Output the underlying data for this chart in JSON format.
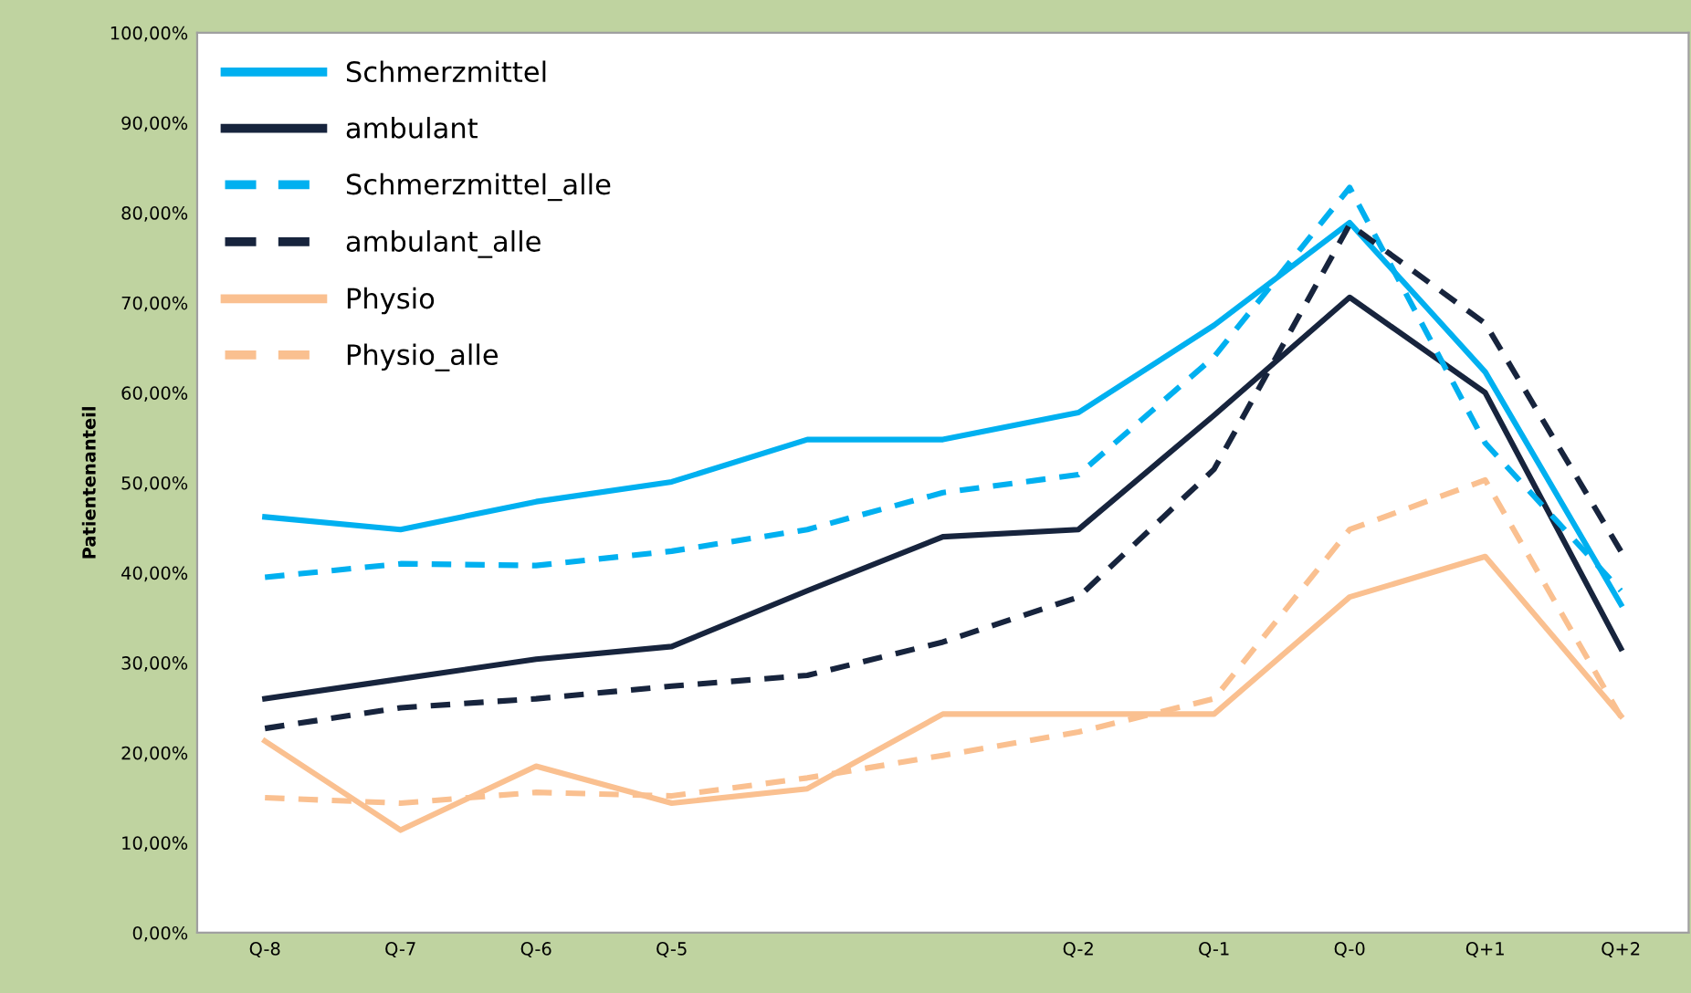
{
  "chart_data": {
    "type": "line",
    "ylabel": "Patientenanteil",
    "categories": [
      "Q-8",
      "Q-7",
      "Q-6",
      "Q-5",
      null,
      null,
      "Q-2",
      "Q-1",
      "Q-0",
      "Q+1",
      "Q+2"
    ],
    "series": [
      {
        "name": "Schmerzmittel",
        "color": "#00b0f0",
        "line_style": "solid",
        "values": [
          46.2,
          44.8,
          47.9,
          50.1,
          54.8,
          54.8,
          57.8,
          67.5,
          78.9,
          62.3,
          36.5
        ]
      },
      {
        "name": "ambulant",
        "color": "#17243d",
        "line_style": "solid",
        "values": [
          26.0,
          28.2,
          30.4,
          31.8,
          38.0,
          44.0,
          44.8,
          57.5,
          70.6,
          60.0,
          31.6
        ]
      },
      {
        "name": "Schmerzmittel_alle",
        "color": "#00b0f0",
        "line_style": "dashed",
        "values": [
          39.5,
          41.0,
          40.8,
          42.4,
          44.8,
          48.9,
          50.9,
          64.0,
          82.8,
          54.4,
          38.0
        ]
      },
      {
        "name": "ambulant_alle",
        "color": "#17243d",
        "line_style": "dashed",
        "values": [
          22.7,
          25.0,
          26.0,
          27.4,
          28.6,
          32.3,
          37.3,
          51.5,
          78.7,
          67.7,
          42.4
        ]
      },
      {
        "name": "Physio",
        "color": "#fac090",
        "line_style": "solid",
        "values": [
          21.3,
          11.4,
          18.5,
          14.4,
          16.0,
          24.3,
          24.3,
          24.3,
          37.3,
          41.8,
          24.1
        ]
      },
      {
        "name": "Physio_alle",
        "color": "#fac090",
        "line_style": "dashed",
        "values": [
          15.0,
          14.4,
          15.6,
          15.2,
          17.2,
          19.7,
          22.3,
          26.0,
          44.8,
          50.3,
          24.0
        ]
      }
    ],
    "ylim": [
      0,
      100
    ],
    "yticks": [
      {
        "value": 0,
        "label": "0,00%"
      },
      {
        "value": 10,
        "label": "10,00%"
      },
      {
        "value": 20,
        "label": "20,00%"
      },
      {
        "value": 30,
        "label": "30,00%"
      },
      {
        "value": 40,
        "label": "40,00%"
      },
      {
        "value": 50,
        "label": "50,00%"
      },
      {
        "value": 60,
        "label": "60,00%"
      },
      {
        "value": 70,
        "label": "70,00%"
      },
      {
        "value": 80,
        "label": "80,00%"
      },
      {
        "value": 90,
        "label": "90,00%"
      },
      {
        "value": 100,
        "label": "100,00%"
      }
    ],
    "legend": "top left",
    "grid": false
  }
}
